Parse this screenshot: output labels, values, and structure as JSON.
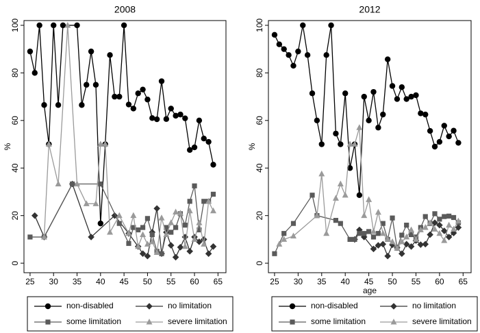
{
  "chart_data": [
    {
      "type": "line",
      "title": "2008",
      "ylabel": "%",
      "xlim": [
        23.7,
        66.7
      ],
      "ylim": [
        -4,
        102
      ],
      "xticks": [
        25,
        30,
        35,
        40,
        45,
        50,
        55,
        60,
        65
      ],
      "yticks": [
        0,
        20,
        40,
        60,
        80,
        100
      ],
      "series": [
        {
          "name": "non-disabled",
          "color": "#000000",
          "marker": "circle",
          "x": [
            25,
            26,
            27,
            28,
            29,
            30,
            31,
            32,
            35,
            36,
            37,
            38,
            39,
            40,
            41,
            42,
            43,
            44,
            45,
            46,
            47,
            48,
            49,
            50,
            51,
            52,
            53,
            54,
            55,
            56,
            57,
            58,
            59,
            60,
            61,
            62,
            63,
            64
          ],
          "values": [
            89,
            80,
            100,
            66.5,
            50,
            100,
            66.5,
            100,
            100,
            66.5,
            75,
            89,
            75,
            16.7,
            50,
            87.5,
            70,
            70,
            100,
            66.7,
            65,
            71.4,
            73,
            68.8,
            61,
            60.5,
            76.5,
            60.6,
            65,
            62,
            62.5,
            60.9,
            47.6,
            48.7,
            60,
            52.4,
            51,
            41.4
          ]
        },
        {
          "name": "no limitation",
          "color": "#333333",
          "marker": "diamond",
          "x": [
            26,
            28,
            34,
            38,
            43,
            46,
            48,
            49,
            50,
            51,
            52,
            53,
            54,
            55,
            56,
            57,
            58,
            59,
            60,
            61,
            62,
            63,
            64
          ],
          "values": [
            20,
            11,
            33.3,
            11,
            20,
            12.5,
            7,
            4,
            3,
            13,
            23,
            4,
            13,
            7.5,
            2.5,
            6.7,
            11,
            5,
            11,
            9,
            10,
            4,
            7
          ]
        },
        {
          "name": "some limitation",
          "color": "#5a5a5a",
          "marker": "square",
          "x": [
            25,
            28,
            34,
            40,
            44,
            46,
            47,
            48,
            49,
            50,
            51,
            52,
            53,
            54,
            55,
            56,
            57,
            58,
            59,
            60,
            61,
            62,
            63,
            64
          ],
          "values": [
            11,
            11,
            33.3,
            33.3,
            16.7,
            8.3,
            15,
            14,
            15,
            18.8,
            12,
            5,
            4,
            15,
            13,
            15,
            20.8,
            16,
            26,
            32.5,
            14,
            26,
            26,
            29
          ]
        },
        {
          "name": "severe limitation",
          "color": "#9a9a9a",
          "marker": "triangle",
          "x": [
            28,
            29,
            31,
            33,
            35,
            37,
            39,
            40,
            41,
            42,
            44,
            46,
            47,
            48,
            49,
            50,
            51,
            52,
            53,
            54,
            55,
            56,
            57,
            58,
            59,
            60,
            61,
            62,
            63,
            64
          ],
          "values": [
            11,
            50,
            33.3,
            100,
            33.3,
            25,
            25,
            50,
            50,
            13,
            20,
            12.5,
            20,
            7,
            12,
            8,
            9,
            4.5,
            19,
            12,
            17,
            21.5,
            21,
            7,
            22,
            10,
            17,
            8,
            26,
            22
          ]
        }
      ]
    },
    {
      "type": "line",
      "title": "2012",
      "ylabel": "%",
      "xlabel": "age",
      "xlim": [
        23.7,
        66.7
      ],
      "ylim": [
        -4,
        102
      ],
      "xticks": [
        25,
        30,
        35,
        40,
        45,
        50,
        55,
        60,
        65
      ],
      "yticks": [
        0,
        20,
        40,
        60,
        80,
        100
      ],
      "series": [
        {
          "name": "non-disabled",
          "color": "#000000",
          "marker": "circle",
          "x": [
            25,
            26,
            27,
            28,
            29,
            30,
            31,
            32,
            33,
            34,
            35,
            36,
            37,
            38,
            39,
            40,
            41,
            42,
            43,
            44,
            45,
            46,
            47,
            48,
            49,
            50,
            51,
            52,
            53,
            54,
            55,
            56,
            57,
            58,
            59,
            60,
            61,
            62,
            63,
            64
          ],
          "values": [
            96,
            92,
            90,
            87.5,
            83,
            89,
            100,
            87.5,
            71.4,
            60,
            50,
            87.5,
            100,
            54.5,
            50,
            71.4,
            40,
            50,
            28.6,
            70,
            60,
            72,
            57,
            62.5,
            85.7,
            74.5,
            69,
            74,
            69,
            70,
            70.6,
            63,
            62.5,
            55.6,
            49,
            51,
            57.8,
            53.3,
            55.7,
            50.6
          ]
        },
        {
          "name": "no limitation",
          "color": "#333333",
          "marker": "diamond",
          "x": [
            42,
            43,
            44,
            46,
            47,
            48,
            49,
            50,
            51,
            52,
            53,
            54,
            55,
            56,
            57,
            58,
            59,
            60,
            61,
            62,
            63,
            64
          ],
          "values": [
            10,
            14,
            11,
            6,
            7.5,
            8,
            3,
            7.7,
            6.5,
            4,
            8,
            7,
            9.5,
            7.8,
            8,
            12,
            17,
            16,
            13.6,
            11,
            12.7,
            15
          ]
        },
        {
          "name": "some limitation",
          "color": "#5a5a5a",
          "marker": "square",
          "x": [
            25,
            27,
            29,
            33,
            34,
            38,
            39,
            41,
            42,
            43,
            44,
            45,
            46,
            47,
            48,
            49,
            50,
            51,
            52,
            53,
            54,
            55,
            56,
            57,
            58,
            59,
            60,
            61,
            62,
            63,
            64
          ],
          "values": [
            4,
            12.5,
            16.7,
            28.6,
            20,
            18,
            16.7,
            10,
            10,
            12.5,
            12.5,
            13.3,
            11,
            12.5,
            16.7,
            10,
            19,
            6.3,
            11.8,
            16,
            12,
            11,
            15,
            19.6,
            16.7,
            20.8,
            18.5,
            19.6,
            19.8,
            19.2,
            17
          ]
        },
        {
          "name": "severe limitation",
          "color": "#9a9a9a",
          "marker": "triangle",
          "x": [
            26,
            27,
            29,
            34,
            35,
            36,
            38,
            39,
            40,
            41,
            42,
            43,
            44,
            45,
            46,
            47,
            48,
            49,
            50,
            51,
            52,
            53,
            54,
            55,
            56,
            57,
            58,
            59,
            60,
            61,
            62,
            63,
            64
          ],
          "values": [
            8,
            10,
            11.4,
            20,
            37.5,
            12.5,
            27.3,
            33.3,
            28.6,
            50,
            50,
            57,
            20,
            26.7,
            13.3,
            21.4,
            12.5,
            10,
            9,
            6.3,
            9,
            11,
            14,
            10,
            14,
            15,
            17,
            14.3,
            12.5,
            9.5,
            16,
            14.3,
            17.7
          ]
        }
      ]
    }
  ]
}
